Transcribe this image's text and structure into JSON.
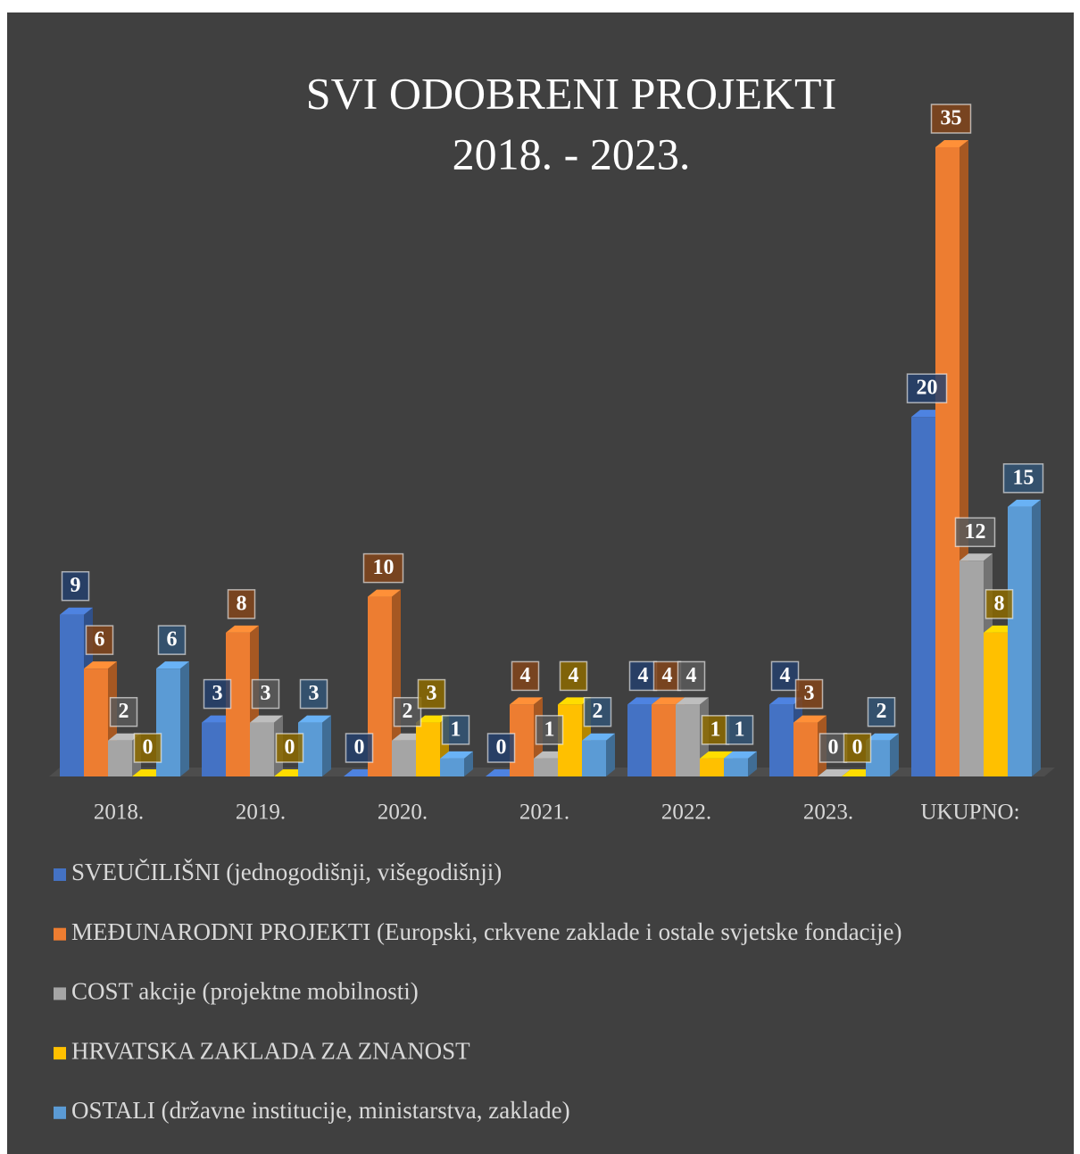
{
  "chart_data": {
    "type": "bar3d",
    "title": "SVI ODOBRENI PROJEKTI",
    "subtitle": "2018. - 2023.",
    "categories": [
      "2018.",
      "2019.",
      "2020.",
      "2021.",
      "2022.",
      "2023.",
      "UKUPNO:"
    ],
    "series": [
      {
        "name": "SVEUČILIŠNI (jednogodišnji, višegodišnji)",
        "color": "#4472c4",
        "values": [
          9,
          3,
          0,
          0,
          4,
          4,
          20
        ]
      },
      {
        "name": "MEĐUNARODNI PROJEKTI (Europski, crkvene zaklade i ostale svjetske fondacije)",
        "color": "#ed7d31",
        "values": [
          6,
          8,
          10,
          4,
          4,
          3,
          35
        ]
      },
      {
        "name": "COST akcije (projektne mobilnosti)",
        "color": "#a5a5a5",
        "values": [
          2,
          3,
          2,
          1,
          4,
          0,
          12
        ]
      },
      {
        "name": "HRVATSKA ZAKLADA ZA ZNANOST",
        "color": "#ffc000",
        "values": [
          0,
          0,
          3,
          4,
          1,
          0,
          8
        ]
      },
      {
        "name": "OSTALI (državne institucije, ministarstva, zaklade)",
        "color": "#5b9bd5",
        "values": [
          6,
          3,
          1,
          2,
          1,
          2,
          15
        ]
      }
    ],
    "legend": "bottom"
  }
}
